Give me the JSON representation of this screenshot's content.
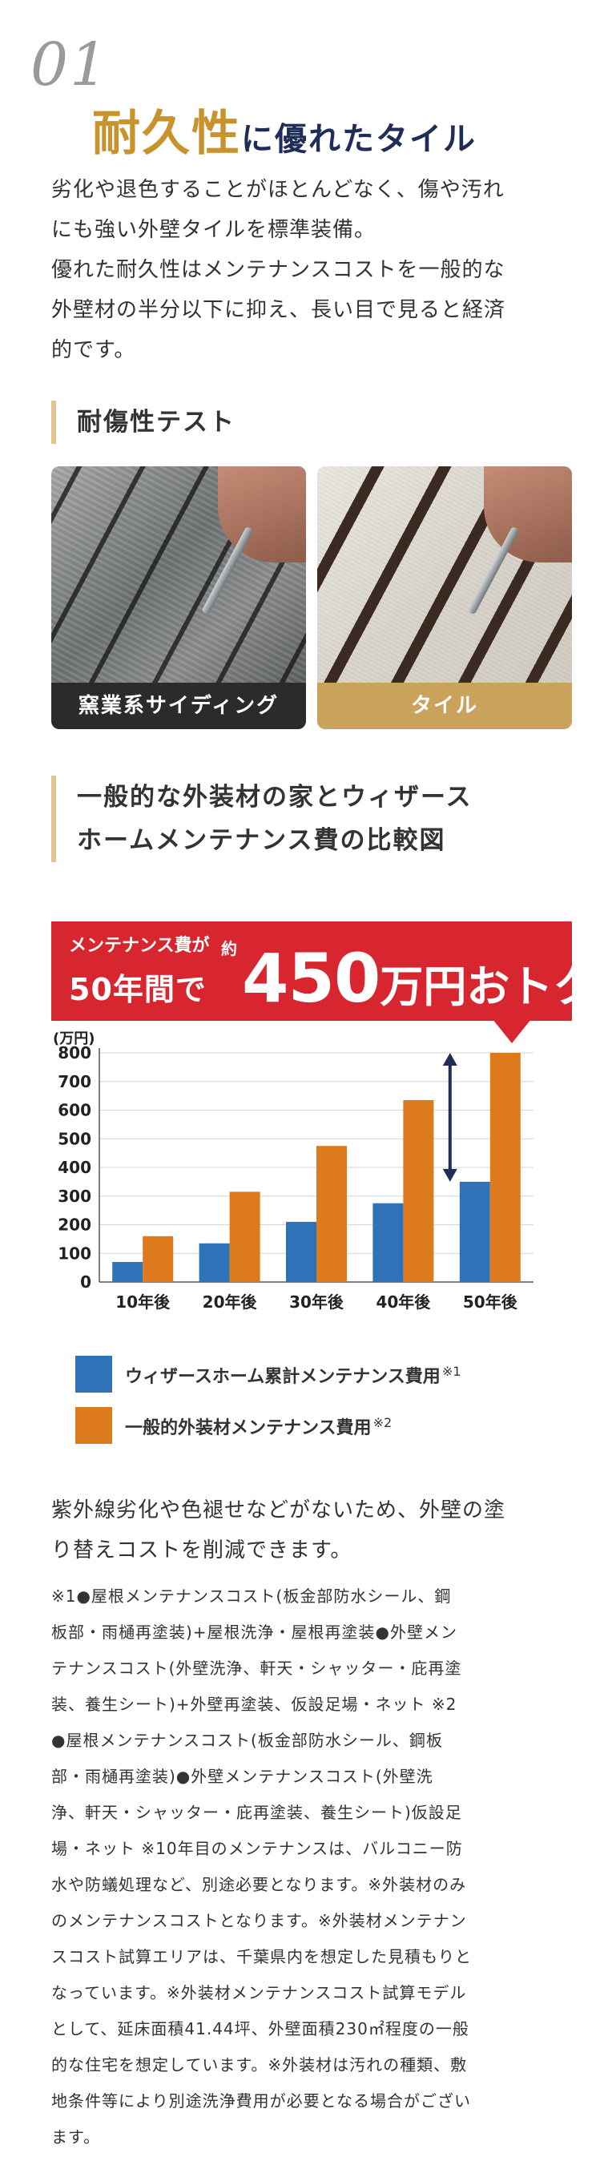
{
  "header": {
    "number": "01",
    "title_big": "耐久性",
    "title_rest": "に優れたタイル"
  },
  "intro": {
    "line1": "劣化や退色することがほとんどなく、傷や汚れ",
    "line2": "にも強い外壁タイルを標準装備。",
    "line3": "優れた耐久性はメンテナンスコストを一般的な",
    "line4": "外壁材の半分以下に抑え、長い目で見ると経済",
    "line5": "的です。"
  },
  "test_section": {
    "heading": "耐傷性テスト",
    "photos": [
      {
        "label": "窯業系サイディング"
      },
      {
        "label": "タイル"
      }
    ]
  },
  "compare_section": {
    "heading_line1": "一般的な外装材の家とウィザース",
    "heading_line2": "ホームメンテナンス費の比較図"
  },
  "banner": {
    "line1": "メンテナンス費が",
    "about": "約",
    "line2": "50年間で",
    "amount": "450",
    "amount_suffix": "万円おトク!"
  },
  "chart_data": {
    "type": "bar",
    "ylabel": "(万円)",
    "ylim": [
      0,
      800
    ],
    "yticks": [
      0,
      100,
      200,
      300,
      400,
      500,
      600,
      700,
      800
    ],
    "grid": true,
    "categories": [
      "10年後",
      "20年後",
      "30年後",
      "40年後",
      "50年後"
    ],
    "series": [
      {
        "name": "ウィザースホーム累計メンテナンス費用",
        "note": "※1",
        "color": "#2e73b8",
        "values": [
          70,
          135,
          210,
          275,
          350
        ]
      },
      {
        "name": "一般的外装材メンテナンス費用",
        "note": "※2",
        "color": "#dd7a1d",
        "values": [
          160,
          315,
          475,
          635,
          800
        ]
      }
    ],
    "arrow_color": "#1f2d57"
  },
  "after_chart": {
    "line1": "紫外線劣化や色褪せなどがないため、外壁の塗",
    "line2": "り替えコストを削減できます。"
  },
  "notes": [
    "※1●屋根メンテナンスコスト(板金部防水シール、鋼",
    "板部・雨樋再塗装)+屋根洗浄・屋根再塗装●外壁メン",
    "テナンスコスト(外壁洗浄、軒天・シャッター・庇再塗",
    "装、養生シート)+外壁再塗装、仮設足場・ネット ※2",
    "●屋根メンテナンスコスト(板金部防水シール、鋼板",
    "部・雨樋再塗装)●外壁メンテナンスコスト(外壁洗",
    "浄、軒天・シャッター・庇再塗装、養生シート)仮設足",
    "場・ネット ※10年目のメンテナンスは、バルコニー防",
    "水や防蟻処理など、別途必要となります。※外装材のみ",
    "のメンテナンスコストとなります。※外装材メンテナン",
    "スコスト試算エリアは、千葉県内を想定した見積もりと",
    "なっています。※外装材メンテナンスコスト試算モデル",
    "として、延床面積41.44坪、外壁面積230㎡程度の一般",
    "的な住宅を想定しています。※外装材は汚れの種類、敷",
    "地条件等により別途洗浄費用が必要となる場合がござい",
    "ます。"
  ]
}
